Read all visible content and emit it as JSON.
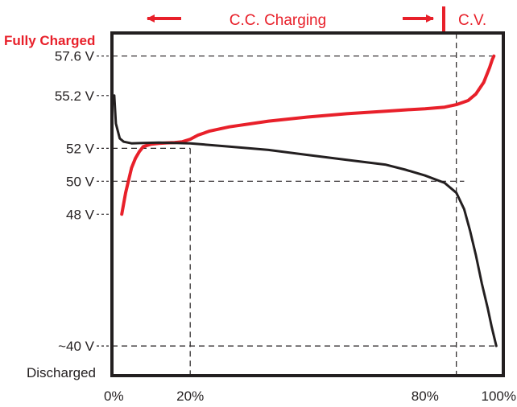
{
  "chart_data": {
    "type": "line",
    "header": {
      "phase_cc": "C.C. Charging",
      "phase_cv": "C.V."
    },
    "full_label": "Fully Charged",
    "discharged_label": "Discharged",
    "x_ticks": [
      {
        "value": 0,
        "label": "0%"
      },
      {
        "value": 20,
        "label": "20%"
      },
      {
        "value": 80,
        "label": "80%"
      },
      {
        "value": 100,
        "label": "100%"
      }
    ],
    "y_ticks": [
      {
        "value": 57.6,
        "label": "57.6 V"
      },
      {
        "value": 55.2,
        "label": "55.2 V"
      },
      {
        "value": 52,
        "label": "52 V"
      },
      {
        "value": 50,
        "label": "50 V"
      },
      {
        "value": 48,
        "label": "48 V"
      },
      {
        "value": 40,
        "label": "~40 V"
      }
    ],
    "xlim": [
      0,
      100
    ],
    "ylim": [
      38.2,
      59.0
    ],
    "colors": {
      "charge": "#e8202a",
      "discharge": "#231f20",
      "frame": "#231f20"
    },
    "series": [
      {
        "role": "charge",
        "x": [
          2.5,
          3.5,
          5,
          6,
          7,
          8,
          10,
          12,
          14,
          16,
          18,
          20,
          22,
          25,
          30,
          40,
          50,
          60,
          70,
          75,
          80,
          85,
          88,
          91,
          93,
          95,
          96.5,
          97.2,
          97.6
        ],
        "y": [
          48.0,
          49.3,
          50.8,
          51.4,
          51.8,
          52.1,
          52.25,
          52.3,
          52.33,
          52.35,
          52.4,
          52.55,
          52.8,
          53.05,
          53.3,
          53.65,
          53.9,
          54.1,
          54.25,
          54.33,
          54.4,
          54.5,
          54.65,
          54.9,
          55.3,
          56.0,
          56.9,
          57.4,
          57.6
        ]
      },
      {
        "role": "discharge",
        "x": [
          0.6,
          1.0,
          2,
          3,
          5,
          8,
          12,
          20,
          30,
          40,
          50,
          60,
          70,
          75,
          80,
          85,
          88,
          90,
          91.5,
          93,
          94.5,
          96,
          97,
          97.8,
          98.2
        ],
        "y": [
          55.2,
          53.5,
          52.6,
          52.4,
          52.3,
          52.32,
          52.35,
          52.3,
          52.1,
          51.9,
          51.6,
          51.3,
          51.0,
          50.7,
          50.35,
          49.9,
          49.3,
          48.3,
          47.0,
          45.5,
          43.8,
          42.3,
          41.2,
          40.4,
          40.0
        ]
      }
    ],
    "dashed_guides": [
      {
        "y": 57.6,
        "x_to": 97.6
      },
      {
        "y": 52,
        "x_to": 20
      },
      {
        "y": 50,
        "x_to": 90
      },
      {
        "y": 40,
        "x_to": 98.2
      },
      {
        "x": 20,
        "y_from": 52
      },
      {
        "x": 88
      }
    ]
  }
}
